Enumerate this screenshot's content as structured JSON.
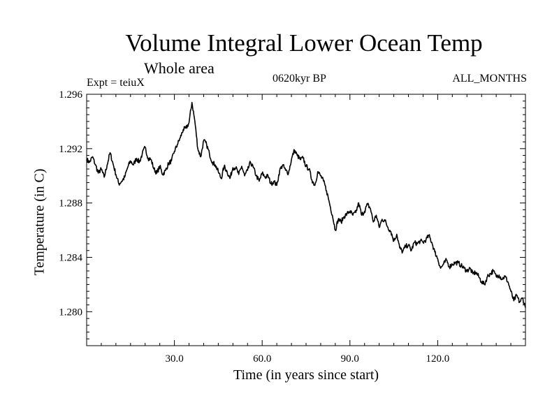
{
  "chart_data": {
    "type": "line",
    "title": "Volume Integral Lower Ocean Temp",
    "subtitle": "Whole area",
    "experiment": "Expt = teiuX",
    "period": "0620kyr BP",
    "months": "ALL_MONTHS",
    "xlabel": "Time (in years since start)",
    "ylabel": "Temperature (in C)",
    "xlim": [
      0,
      150
    ],
    "ylim": [
      1.2775,
      1.296
    ],
    "xticks": [
      30,
      60,
      90,
      120
    ],
    "xtick_labels": [
      "30.0",
      "60.0",
      "90.0",
      "120.0"
    ],
    "yticks": [
      1.28,
      1.284,
      1.288,
      1.292,
      1.296
    ],
    "ytick_labels": [
      "1.280",
      "1.284",
      "1.288",
      "1.292",
      "1.296"
    ],
    "series": [
      {
        "name": "Temperature",
        "x": [
          0,
          1,
          2,
          3,
          4,
          5,
          6,
          7,
          8,
          9,
          10,
          11,
          12,
          13,
          14,
          15,
          16,
          17,
          18,
          19,
          20,
          21,
          22,
          23,
          24,
          25,
          26,
          27,
          28,
          29,
          30,
          31,
          32,
          33,
          34,
          35,
          36,
          37,
          38,
          39,
          40,
          41,
          42,
          43,
          44,
          45,
          46,
          47,
          48,
          49,
          50,
          51,
          52,
          53,
          54,
          55,
          56,
          57,
          58,
          59,
          60,
          61,
          62,
          63,
          64,
          65,
          66,
          67,
          68,
          69,
          70,
          71,
          72,
          73,
          74,
          75,
          76,
          77,
          78,
          79,
          80,
          81,
          82,
          83,
          84,
          85,
          86,
          87,
          88,
          89,
          90,
          91,
          92,
          93,
          94,
          95,
          96,
          97,
          98,
          99,
          100,
          101,
          102,
          103,
          104,
          105,
          106,
          107,
          108,
          109,
          110,
          111,
          112,
          113,
          114,
          115,
          116,
          117,
          118,
          119,
          120,
          121,
          122,
          123,
          124,
          125,
          126,
          127,
          128,
          129,
          130,
          131,
          132,
          133,
          134,
          135,
          136,
          137,
          138,
          139,
          140,
          141,
          142,
          143,
          144,
          145,
          146,
          147,
          148,
          149,
          150
        ],
        "y": [
          1.2912,
          1.291,
          1.2914,
          1.2908,
          1.2902,
          1.2905,
          1.2899,
          1.2908,
          1.2917,
          1.2909,
          1.2901,
          1.2894,
          1.2896,
          1.2899,
          1.2906,
          1.2911,
          1.2908,
          1.2913,
          1.291,
          1.2916,
          1.2921,
          1.2913,
          1.2912,
          1.2905,
          1.2902,
          1.2907,
          1.2901,
          1.2904,
          1.2909,
          1.2911,
          1.2918,
          1.2923,
          1.2928,
          1.2934,
          1.2935,
          1.2939,
          1.2954,
          1.294,
          1.292,
          1.2914,
          1.2926,
          1.2923,
          1.2916,
          1.291,
          1.2908,
          1.2903,
          1.2898,
          1.2907,
          1.2903,
          1.2898,
          1.2906,
          1.2906,
          1.2901,
          1.2907,
          1.29,
          1.2904,
          1.291,
          1.2906,
          1.29,
          1.2896,
          1.2902,
          1.2899,
          1.29,
          1.2894,
          1.2896,
          1.2893,
          1.2904,
          1.2908,
          1.2904,
          1.2902,
          1.2912,
          1.2919,
          1.2915,
          1.2912,
          1.2913,
          1.2907,
          1.2905,
          1.2897,
          1.2893,
          1.2903,
          1.29,
          1.2896,
          1.2889,
          1.288,
          1.2871,
          1.286,
          1.2868,
          1.2866,
          1.287,
          1.2872,
          1.2874,
          1.2871,
          1.2873,
          1.288,
          1.2871,
          1.2874,
          1.2879,
          1.2876,
          1.2866,
          1.2871,
          1.2862,
          1.2868,
          1.2867,
          1.2862,
          1.2859,
          1.2852,
          1.2857,
          1.2847,
          1.2844,
          1.2848,
          1.2849,
          1.2845,
          1.2851,
          1.285,
          1.2852,
          1.2851,
          1.2853,
          1.2856,
          1.2851,
          1.2844,
          1.2839,
          1.2832,
          1.2835,
          1.2838,
          1.2833,
          1.2835,
          1.2836,
          1.2836,
          1.2834,
          1.2832,
          1.283,
          1.2832,
          1.2828,
          1.2829,
          1.2826,
          1.2822,
          1.282,
          1.2826,
          1.2828,
          1.283,
          1.2826,
          1.2827,
          1.2824,
          1.2826,
          1.2822,
          1.2815,
          1.2808,
          1.2812,
          1.2807,
          1.281,
          1.2803
        ]
      }
    ]
  }
}
